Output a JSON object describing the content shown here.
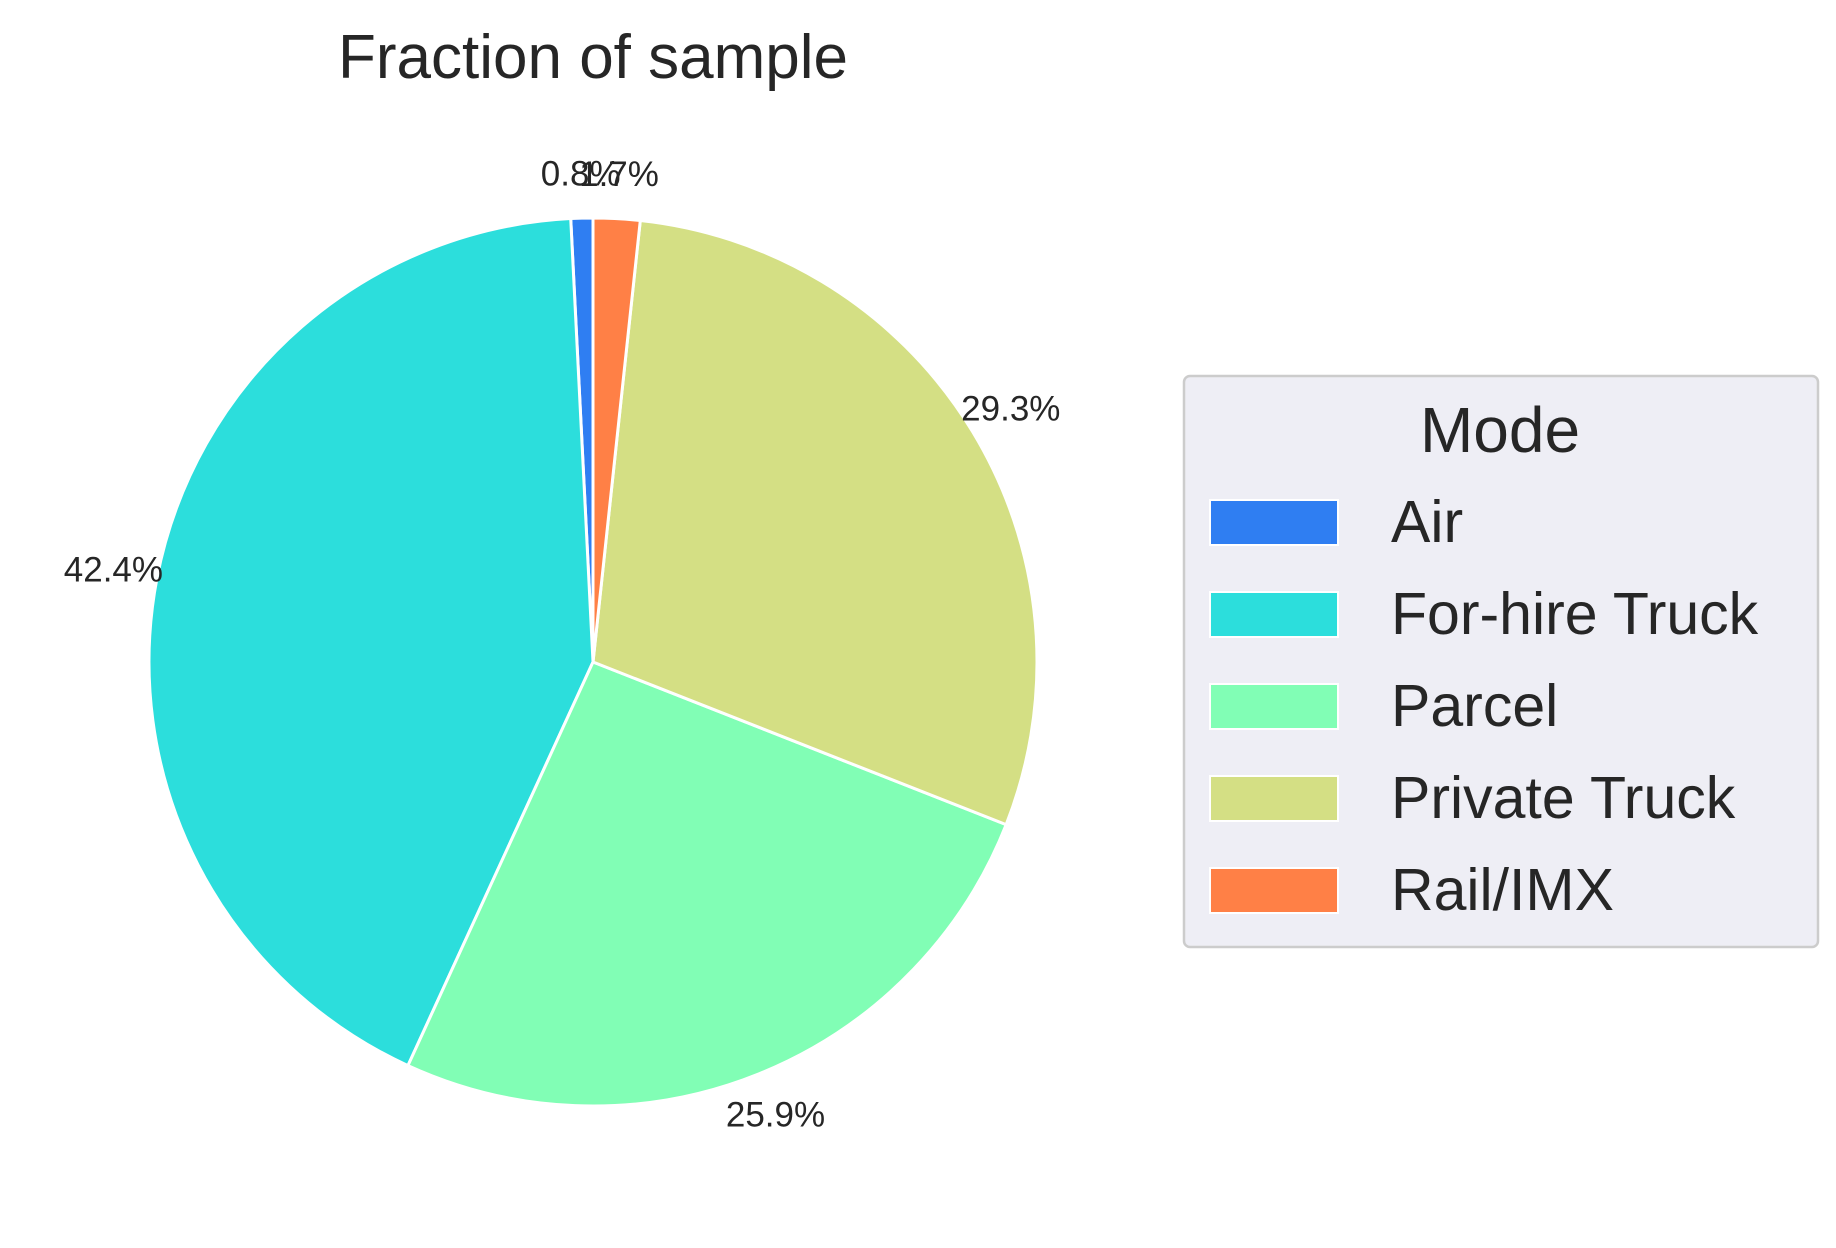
{
  "chart_data": {
    "type": "pie",
    "title": "Fraction of sample",
    "categories": [
      "Air",
      "For-hire Truck",
      "Parcel",
      "Private Truck",
      "Rail/IMX"
    ],
    "values": [
      0.8,
      42.4,
      25.9,
      29.3,
      1.7
    ],
    "value_labels": [
      "0.8%",
      "42.4%",
      "25.9%",
      "29.3%",
      "1.7%"
    ],
    "colors": [
      "#2f7ef2",
      "#2cdedc",
      "#81feb5",
      "#d4df84",
      "#ff8046"
    ],
    "start_angle_deg": 90,
    "direction": "counterclockwise",
    "legend": {
      "title": "Mode",
      "placement": "right",
      "entries": [
        "Air",
        "For-hire Truck",
        "Parcel",
        "Private Truck",
        "Rail/IMX"
      ]
    }
  }
}
